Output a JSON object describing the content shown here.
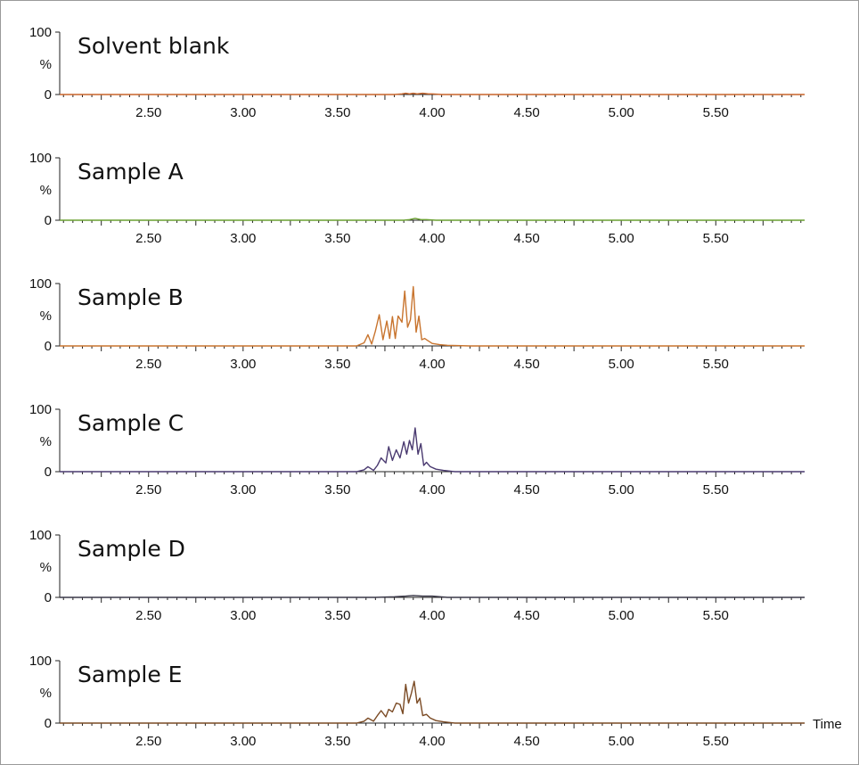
{
  "chart_data": [
    {
      "type": "line",
      "title": "Solvent blank",
      "color": "#c8642a",
      "ylim": [
        0,
        100
      ],
      "yticks": [
        0,
        100
      ],
      "ylabel": "%",
      "xlim": [
        2.03,
        5.97
      ],
      "xticks": [
        "2.50",
        "3.00",
        "3.50",
        "4.00",
        "4.50",
        "5.00",
        "5.50"
      ],
      "xlabel": "",
      "x": [
        2.03,
        3.8,
        3.84,
        3.86,
        3.88,
        3.9,
        3.92,
        3.95,
        3.98,
        4.0,
        4.05,
        5.97
      ],
      "values": [
        0,
        0,
        1,
        2,
        1,
        2,
        1,
        2,
        1,
        1,
        0,
        0
      ]
    },
    {
      "type": "line",
      "title": "Sample A",
      "color": "#6aa030",
      "ylim": [
        0,
        100
      ],
      "yticks": [
        0,
        100
      ],
      "ylabel": "%",
      "xlim": [
        2.03,
        5.97
      ],
      "xticks": [
        "2.50",
        "3.00",
        "3.50",
        "4.00",
        "4.50",
        "5.00",
        "5.50"
      ],
      "xlabel": "",
      "x": [
        2.03,
        3.85,
        3.88,
        3.91,
        3.94,
        3.97,
        4.02,
        5.97
      ],
      "values": [
        0,
        0,
        1,
        3,
        1,
        1,
        0,
        0
      ]
    },
    {
      "type": "line",
      "title": "Sample B",
      "color": "#c8742e",
      "ylim": [
        0,
        100
      ],
      "yticks": [
        0,
        100
      ],
      "ylabel": "%",
      "xlim": [
        2.03,
        5.97
      ],
      "xticks": [
        "2.50",
        "3.00",
        "3.50",
        "4.00",
        "4.50",
        "5.00",
        "5.50"
      ],
      "xlabel": "",
      "x": [
        2.03,
        3.6,
        3.64,
        3.66,
        3.68,
        3.7,
        3.72,
        3.74,
        3.76,
        3.775,
        3.79,
        3.805,
        3.82,
        3.84,
        3.855,
        3.87,
        3.885,
        3.9,
        3.915,
        3.93,
        3.945,
        3.96,
        3.98,
        4.0,
        4.04,
        4.08,
        4.2,
        5.97
      ],
      "values": [
        0,
        0,
        5,
        18,
        3,
        24,
        50,
        10,
        40,
        12,
        47,
        12,
        48,
        38,
        88,
        30,
        42,
        95,
        22,
        48,
        10,
        12,
        8,
        4,
        2,
        1,
        0,
        0
      ]
    },
    {
      "type": "line",
      "title": "Sample C",
      "color": "#4a3a70",
      "ylim": [
        0,
        100
      ],
      "yticks": [
        0,
        100
      ],
      "ylabel": "%",
      "xlim": [
        2.03,
        5.97
      ],
      "xticks": [
        "2.50",
        "3.00",
        "3.50",
        "4.00",
        "4.50",
        "5.00",
        "5.50"
      ],
      "xlabel": "",
      "x": [
        2.03,
        3.6,
        3.64,
        3.66,
        3.69,
        3.71,
        3.73,
        3.755,
        3.77,
        3.79,
        3.81,
        3.83,
        3.85,
        3.865,
        3.88,
        3.895,
        3.91,
        3.925,
        3.94,
        3.955,
        3.97,
        3.99,
        4.02,
        4.06,
        4.12,
        5.97
      ],
      "values": [
        0,
        0,
        3,
        8,
        2,
        10,
        22,
        14,
        40,
        18,
        35,
        22,
        48,
        28,
        50,
        35,
        70,
        28,
        45,
        10,
        15,
        8,
        4,
        2,
        0,
        0
      ]
    },
    {
      "type": "line",
      "title": "Sample D",
      "color": "#3a3848",
      "ylim": [
        0,
        100
      ],
      "yticks": [
        0,
        100
      ],
      "ylabel": "%",
      "xlim": [
        2.03,
        5.97
      ],
      "xticks": [
        "2.50",
        "3.00",
        "3.50",
        "4.00",
        "4.50",
        "5.00",
        "5.50"
      ],
      "xlabel": "",
      "x": [
        2.03,
        3.7,
        3.8,
        3.86,
        3.9,
        3.95,
        4.0,
        4.08,
        5.97
      ],
      "values": [
        0,
        0,
        1,
        2,
        3,
        2,
        2,
        0,
        0
      ]
    },
    {
      "type": "line",
      "title": "Sample E",
      "color": "#7a4a24",
      "ylim": [
        0,
        100
      ],
      "yticks": [
        0,
        100
      ],
      "ylabel": "%",
      "xlim": [
        2.03,
        5.97
      ],
      "xticks": [
        "2.50",
        "3.00",
        "3.50",
        "4.00",
        "4.50",
        "5.00",
        "5.50"
      ],
      "xlabel": "Time",
      "x": [
        2.03,
        3.6,
        3.64,
        3.66,
        3.69,
        3.71,
        3.73,
        3.755,
        3.77,
        3.79,
        3.81,
        3.83,
        3.845,
        3.86,
        3.875,
        3.89,
        3.905,
        3.92,
        3.935,
        3.95,
        3.97,
        3.99,
        4.02,
        4.06,
        4.12,
        5.97
      ],
      "values": [
        0,
        0,
        3,
        8,
        3,
        12,
        20,
        10,
        22,
        18,
        32,
        30,
        15,
        62,
        32,
        48,
        67,
        32,
        40,
        12,
        14,
        8,
        4,
        2,
        0,
        0
      ]
    }
  ]
}
